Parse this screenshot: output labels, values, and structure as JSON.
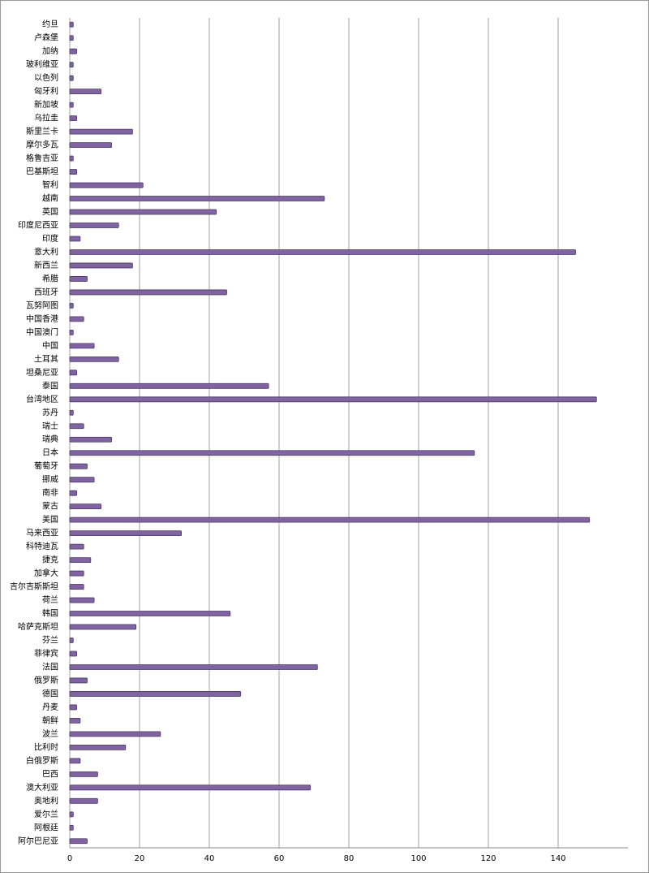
{
  "chart_data": {
    "type": "bar",
    "orientation": "horizontal",
    "color": "#8064a2",
    "categories": [
      "约旦",
      "卢森堡",
      "加纳",
      "玻利维亚",
      "以色列",
      "匈牙利",
      "新加坡",
      "乌拉圭",
      "斯里兰卡",
      "摩尔多瓦",
      "格鲁吉亚",
      "巴基斯坦",
      "智利",
      "越南",
      "英国",
      "印度尼西亚",
      "印度",
      "意大利",
      "新西兰",
      "希腊",
      "西班牙",
      "瓦努阿图",
      "中国香港",
      "中国澳门",
      "中国",
      "土耳其",
      "坦桑尼亚",
      "泰国",
      "台湾地区",
      "苏丹",
      "瑞士",
      "瑞典",
      "日本",
      "葡萄牙",
      "挪威",
      "南非",
      "蒙古",
      "美国",
      "马来西亚",
      "科特迪瓦",
      "捷克",
      "加拿大",
      "吉尔吉斯斯坦",
      "荷兰",
      "韩国",
      "哈萨克斯坦",
      "芬兰",
      "菲律宾",
      "法国",
      "俄罗斯",
      "德国",
      "丹麦",
      "朝鲜",
      "波兰",
      "比利时",
      "白俄罗斯",
      "巴西",
      "澳大利亚",
      "奥地利",
      "爱尔兰",
      "阿根廷",
      "阿尔巴尼亚"
    ],
    "values": [
      1,
      1,
      2,
      1,
      1,
      9,
      1,
      2,
      18,
      12,
      1,
      2,
      21,
      73,
      42,
      14,
      3,
      145,
      18,
      5,
      45,
      1,
      4,
      1,
      7,
      14,
      2,
      57,
      151,
      1,
      4,
      12,
      116,
      5,
      7,
      2,
      9,
      149,
      32,
      4,
      6,
      4,
      4,
      7,
      46,
      19,
      1,
      2,
      71,
      5,
      49,
      2,
      3,
      26,
      16,
      3,
      8,
      69,
      8,
      1,
      1,
      5
    ],
    "xlim": [
      0,
      160
    ],
    "xticks": [
      0,
      20,
      40,
      60,
      80,
      100,
      120,
      140
    ],
    "grid": true
  }
}
